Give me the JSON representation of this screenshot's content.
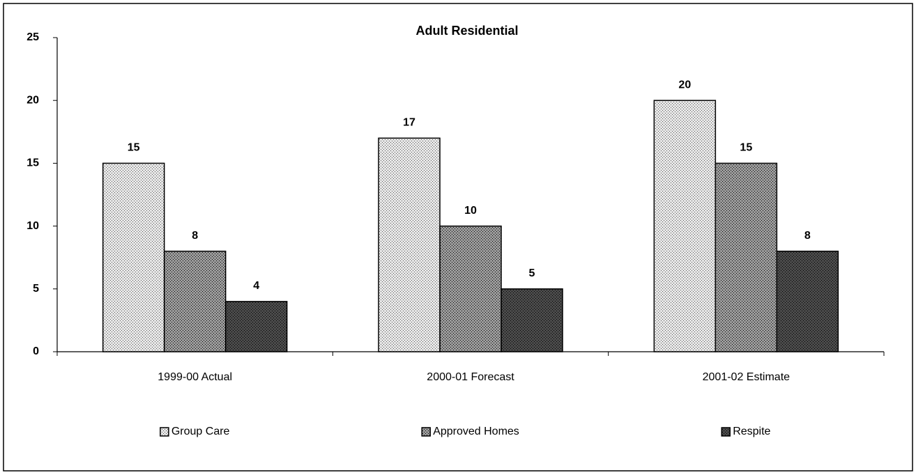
{
  "chart_data": {
    "type": "bar",
    "title": "Adult Residential",
    "categories": [
      "1999-00 Actual",
      "2000-01 Forecast",
      "2001-02 Estimate"
    ],
    "series": [
      {
        "name": "Group Care",
        "color": "#e6e6e6",
        "values": [
          15,
          17,
          20
        ]
      },
      {
        "name": "Approved Homes",
        "color": "#9a9a9a",
        "values": [
          8,
          10,
          15
        ]
      },
      {
        "name": "Respite",
        "color": "#4a4a4a",
        "values": [
          4,
          5,
          8
        ]
      }
    ],
    "ylim": [
      0,
      25
    ],
    "yticks": [
      0,
      5,
      10,
      15,
      20,
      25
    ],
    "grid": false,
    "legend": "bottom"
  }
}
